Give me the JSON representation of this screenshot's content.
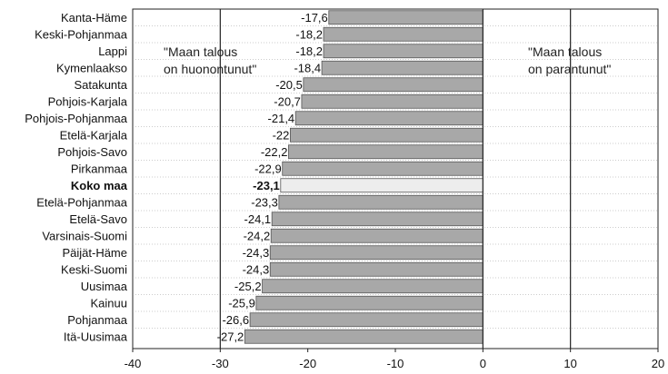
{
  "chart_data": {
    "type": "bar",
    "orientation": "horizontal",
    "categories": [
      "Kanta-Häme",
      "Keski-Pohjanmaa",
      "Lappi",
      "Kymenlaakso",
      "Satakunta",
      "Pohjois-Karjala",
      "Pohjois-Pohjanmaa",
      "Etelä-Karjala",
      "Pohjois-Savo",
      "Pirkanmaa",
      "Koko maa",
      "Etelä-Pohjanmaa",
      "Etelä-Savo",
      "Varsinais-Suomi",
      "Päijät-Häme",
      "Keski-Suomi",
      "Uusimaa",
      "Kainuu",
      "Pohjanmaa",
      "Itä-Uusimaa"
    ],
    "values": [
      -17.6,
      -18.2,
      -18.2,
      -18.4,
      -20.5,
      -20.7,
      -21.4,
      -22,
      -22.2,
      -22.9,
      -23.1,
      -23.3,
      -24.1,
      -24.2,
      -24.3,
      -24.3,
      -25.2,
      -25.9,
      -26.6,
      -27.2
    ],
    "value_labels": [
      "-17,6",
      "-18,2",
      "-18,2",
      "-18,4",
      "-20,5",
      "-20,7",
      "-21,4",
      "-22",
      "-22,2",
      "-22,9",
      "-23,1",
      "-23,3",
      "-24,1",
      "-24,2",
      "-24,3",
      "-24,3",
      "-25,2",
      "-25,9",
      "-26,6",
      "-27,2"
    ],
    "highlight": "Koko maa",
    "xlim": [
      -40,
      20
    ],
    "xticks": [
      -40,
      -30,
      -20,
      -10,
      0,
      10,
      20
    ],
    "vertical_lines": [
      -30,
      0,
      10
    ],
    "grid": "horizontal dotted",
    "annotations": [
      {
        "lines": [
          "\"Maan talous",
          "on huonontunut\""
        ]
      },
      {
        "lines": [
          "\"Maan talous",
          "on parantunut\""
        ]
      }
    ],
    "colors": {
      "bar": "#a8a8a8",
      "highlight_bar": "#ededed",
      "line": "#222222"
    }
  }
}
